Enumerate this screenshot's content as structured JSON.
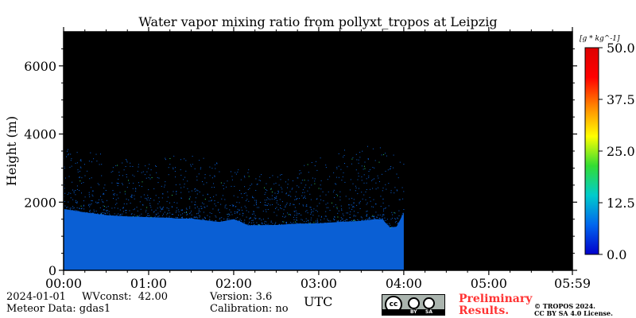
{
  "chart_data": {
    "type": "heatmap",
    "title": "Water vapor mixing ratio from pollyxt_tropos at Leipzig",
    "xlabel": "UTC",
    "ylabel": "Height (m)",
    "x_range_hours": [
      0,
      5.983
    ],
    "ylim": [
      0,
      7000
    ],
    "x_ticks": [
      "00:00",
      "01:00",
      "02:00",
      "03:00",
      "04:00",
      "05:00",
      "05:59"
    ],
    "y_ticks": [
      0,
      2000,
      4000,
      6000
    ],
    "colorbar": {
      "unit_label": "[g * kg^-1]",
      "range": [
        0.0,
        50.0
      ],
      "ticks": [
        "0.0",
        "12.5",
        "25.0",
        "37.5",
        "50.0"
      ],
      "colors": [
        "#0000cc",
        "#0066ee",
        "#00cccc",
        "#33dd33",
        "#ffff00",
        "#ff8800",
        "#ff0000",
        "#dd0000"
      ]
    },
    "background_color": "#000000",
    "field_color": "#0a5fd4",
    "data_end_time": "04:00",
    "dense_layer_top_m": [
      [
        "00:00",
        1800
      ],
      [
        "00:15",
        1700
      ],
      [
        "00:30",
        1620
      ],
      [
        "00:45",
        1580
      ],
      [
        "01:00",
        1560
      ],
      [
        "01:15",
        1540
      ],
      [
        "01:20",
        1520
      ],
      [
        "01:30",
        1520
      ],
      [
        "01:45",
        1440
      ],
      [
        "01:50",
        1420
      ],
      [
        "02:00",
        1500
      ],
      [
        "02:05",
        1420
      ],
      [
        "02:10",
        1320
      ],
      [
        "02:30",
        1330
      ],
      [
        "02:45",
        1370
      ],
      [
        "03:00",
        1380
      ],
      [
        "03:15",
        1420
      ],
      [
        "03:30",
        1450
      ],
      [
        "03:40",
        1500
      ],
      [
        "03:45",
        1500
      ],
      [
        "03:50",
        1260
      ],
      [
        "03:55",
        1280
      ],
      [
        "04:00",
        1700
      ]
    ],
    "sparse_signal_top_m": [
      [
        "00:00",
        3600
      ],
      [
        "00:30",
        3400
      ],
      [
        "01:00",
        3200
      ],
      [
        "01:30",
        3500
      ],
      [
        "02:00",
        3000
      ],
      [
        "02:30",
        2900
      ],
      [
        "03:00",
        3300
      ],
      [
        "03:30",
        3700
      ],
      [
        "04:00",
        3500
      ]
    ]
  },
  "footer": {
    "date": "2024-01-01",
    "wvconst": "WVconst:  42.00",
    "meteor": "Meteor Data: gdas1",
    "version": "Version: 3.6",
    "calibration": "Calibration: no",
    "preliminary_1": "Preliminary",
    "preliminary_2": "Results.",
    "copyright_1": "© TROPOS 2024.",
    "copyright_2": "CC BY SA 4.0 License.",
    "license_badge": {
      "main": "cc",
      "by": "BY",
      "sa": "SA"
    }
  }
}
